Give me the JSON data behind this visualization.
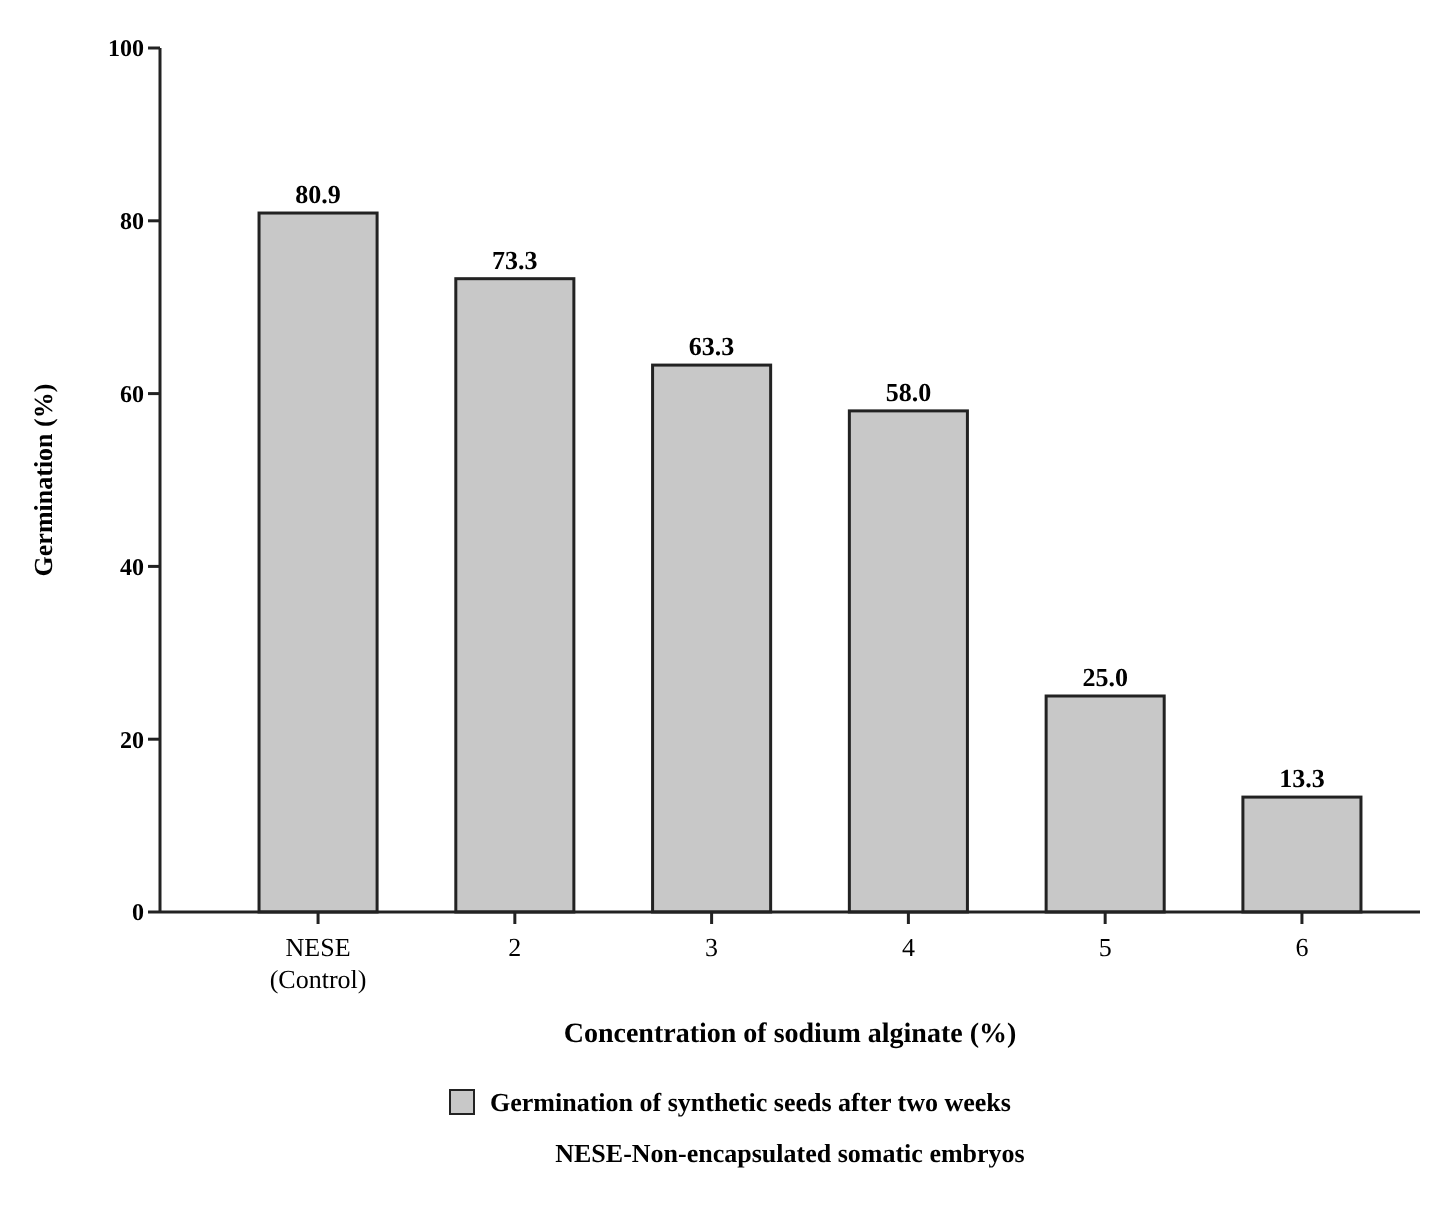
{
  "chart_data": {
    "type": "bar",
    "xlabel": "Concentration of sodium alginate (%)",
    "ylabel": "Germination (%)",
    "categories": [
      "NESE\n(Control)",
      "2",
      "3",
      "4",
      "5",
      "6"
    ],
    "series": [
      {
        "name": "Germination of synthetic seeds after two weeks",
        "color": "#c8c8c8",
        "values": [
          80.9,
          73.3,
          63.3,
          58.0,
          25.0,
          13.3
        ]
      }
    ],
    "value_labels": [
      "80.9",
      "73.3",
      "63.3",
      "58.0",
      "25.0",
      "13.3"
    ],
    "ylim": [
      0,
      100
    ],
    "yticks": [
      0,
      20,
      40,
      60,
      80,
      100
    ],
    "grid": false,
    "legend": "bottom",
    "annotations": [
      "NESE-Non-encapsulated somatic embryos"
    ]
  }
}
